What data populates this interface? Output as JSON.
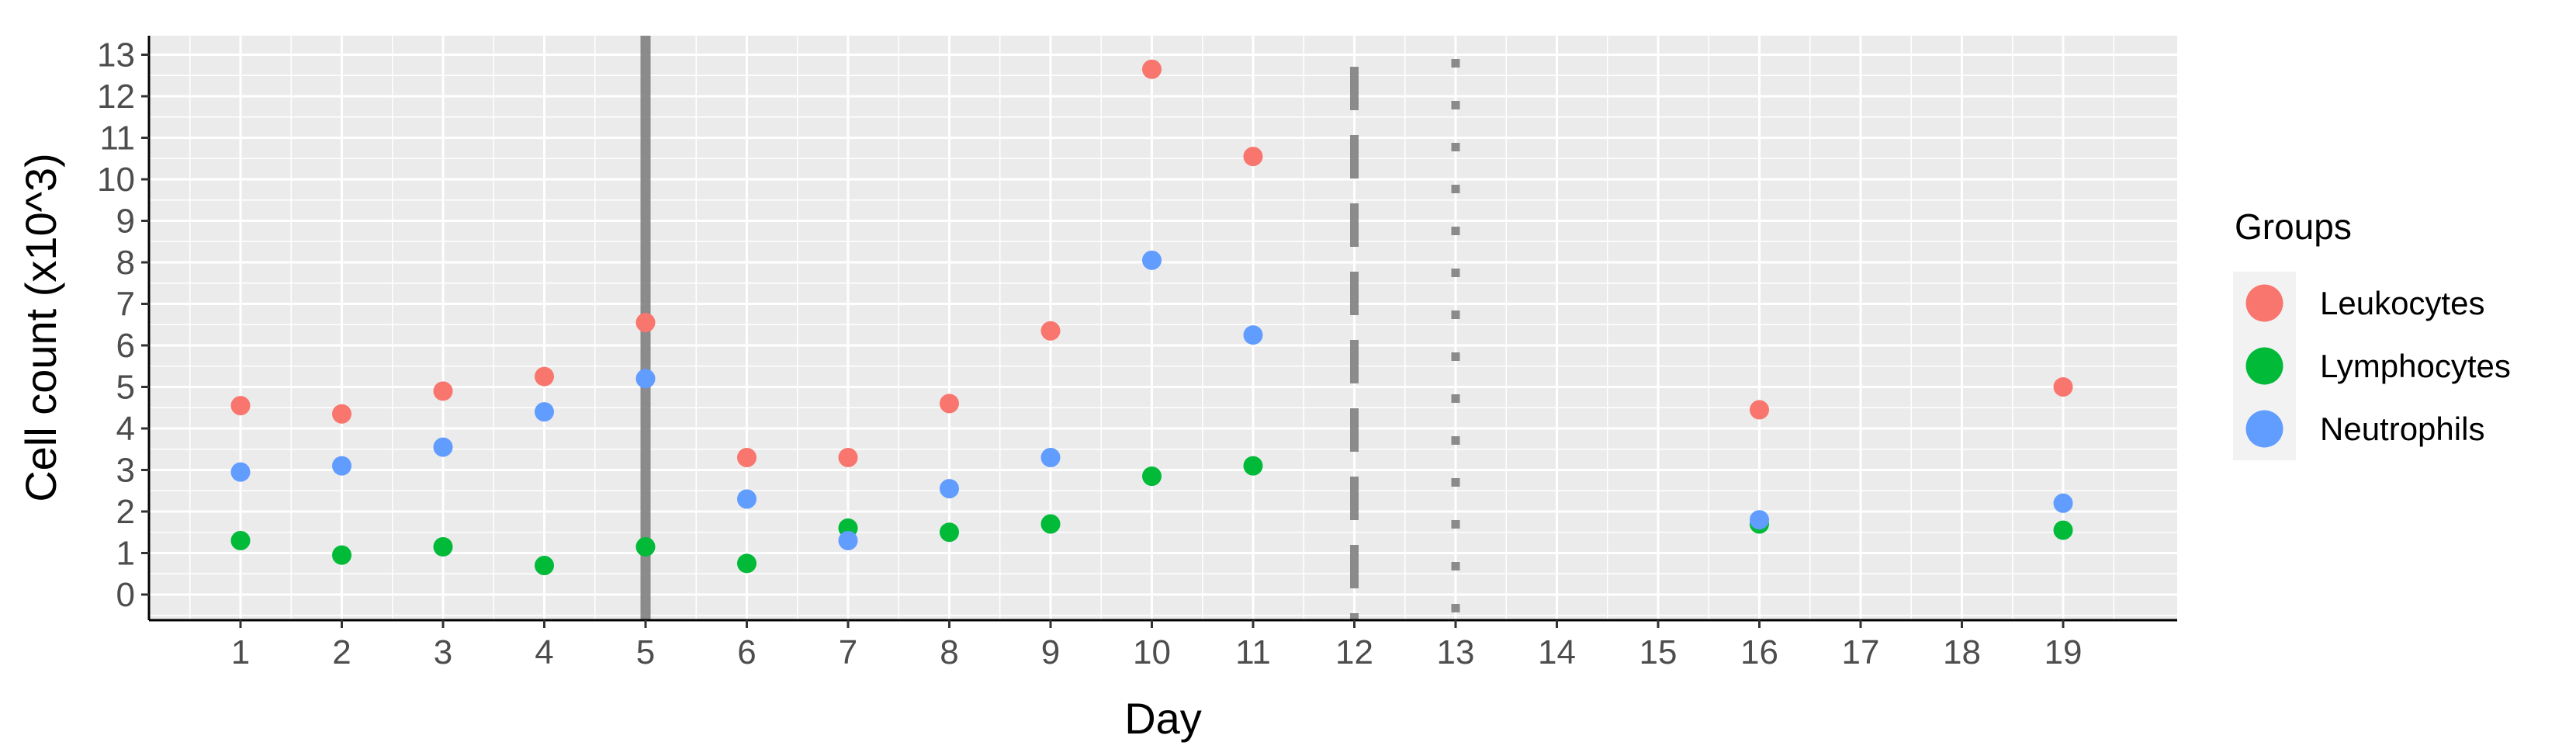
{
  "chart_data": {
    "type": "scatter",
    "xlabel": "Day",
    "ylabel": "Cell count (x10^3)",
    "categories": [
      "1",
      "2",
      "3",
      "4",
      "5",
      "6",
      "7",
      "8",
      "9",
      "10",
      "11",
      "12",
      "13",
      "14",
      "15",
      "16",
      "17",
      "18",
      "19"
    ],
    "ylim": [
      0,
      13
    ],
    "y_ticks": [
      0,
      1,
      2,
      3,
      4,
      5,
      6,
      7,
      8,
      9,
      10,
      11,
      12,
      13
    ],
    "grid": true,
    "legend": {
      "title": "Groups",
      "placement": "right"
    },
    "series": [
      {
        "name": "Leukocytes",
        "color": "#F8766D",
        "x": [
          "1",
          "2",
          "3",
          "4",
          "5",
          "6",
          "7",
          "8",
          "9",
          "10",
          "11",
          "16",
          "19"
        ],
        "values": [
          4.55,
          4.35,
          4.9,
          5.25,
          6.55,
          3.3,
          3.3,
          4.6,
          6.35,
          12.65,
          10.55,
          4.45,
          5.0
        ]
      },
      {
        "name": "Lymphocytes",
        "color": "#00BA38",
        "x": [
          "1",
          "2",
          "3",
          "4",
          "5",
          "6",
          "7",
          "8",
          "9",
          "10",
          "11",
          "16",
          "19"
        ],
        "values": [
          1.3,
          0.95,
          1.15,
          0.7,
          1.15,
          0.75,
          1.6,
          1.5,
          1.7,
          2.85,
          3.1,
          1.7,
          1.55
        ]
      },
      {
        "name": "Neutrophils",
        "color": "#619CFF",
        "x": [
          "1",
          "2",
          "3",
          "4",
          "5",
          "6",
          "7",
          "8",
          "9",
          "10",
          "11",
          "16",
          "19"
        ],
        "values": [
          2.95,
          3.1,
          3.55,
          4.4,
          5.2,
          2.3,
          1.3,
          2.55,
          3.3,
          8.05,
          6.25,
          1.8,
          2.2
        ]
      }
    ],
    "reference_lines": [
      {
        "x": "5",
        "style": "solid"
      },
      {
        "x": "12",
        "style": "dashed"
      },
      {
        "x": "13",
        "style": "dotted"
      }
    ]
  }
}
